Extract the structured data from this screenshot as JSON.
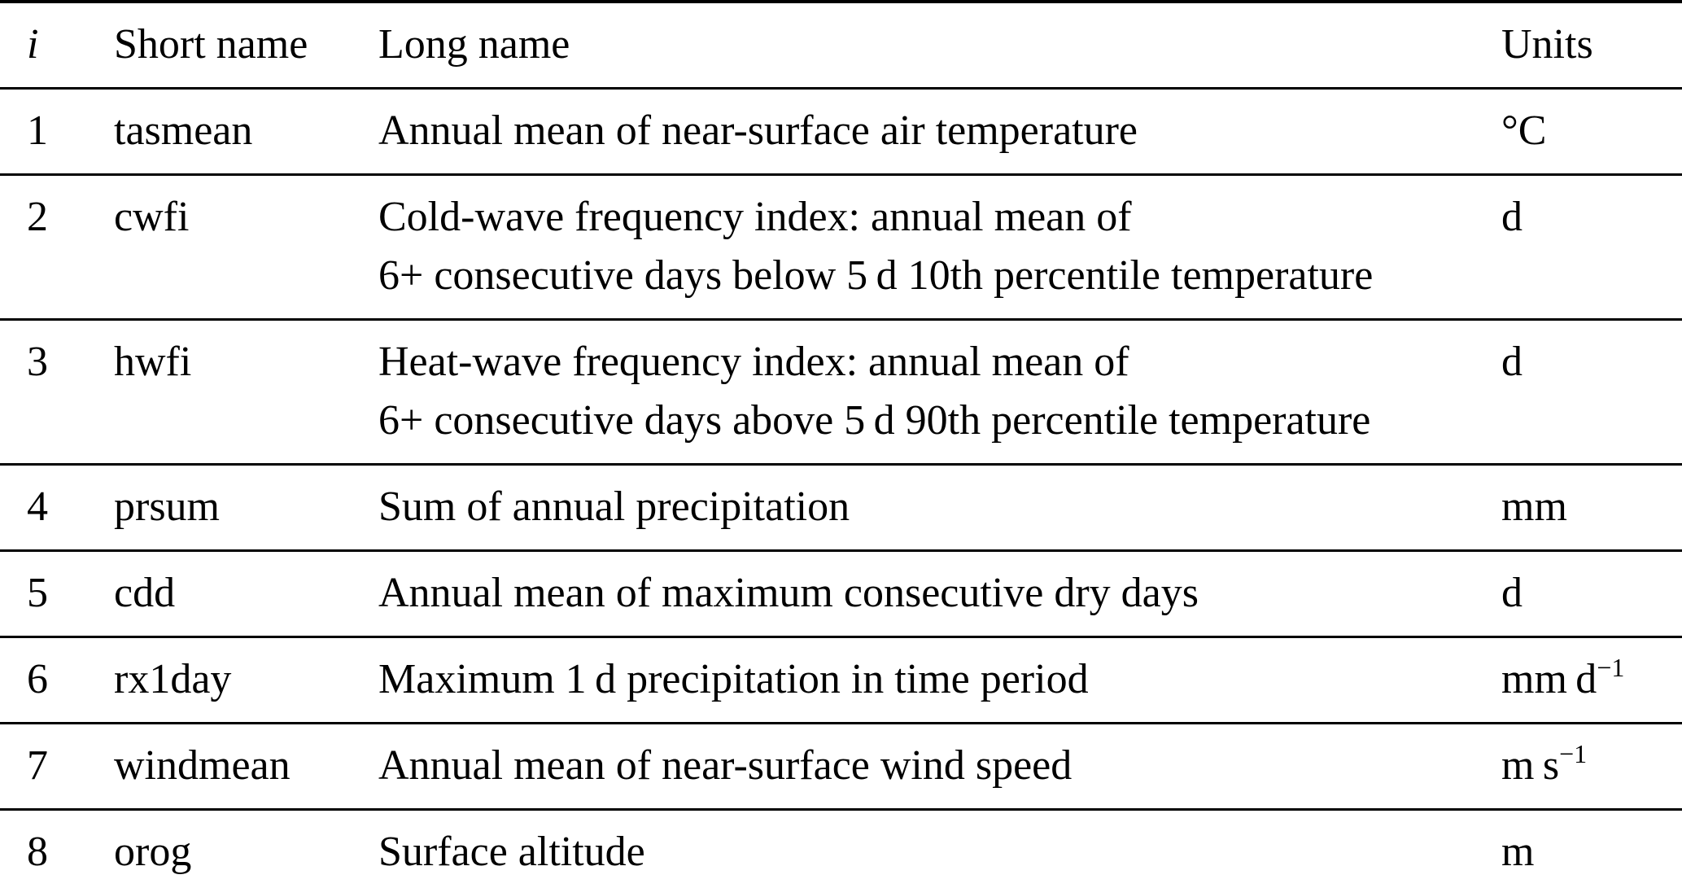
{
  "colors": {
    "text": "#000000",
    "background": "#ffffff",
    "rule": "#000000"
  },
  "table": {
    "headers": {
      "index": "i",
      "short_name": "Short name",
      "long_name": "Long name",
      "units": "Units"
    },
    "rows": [
      {
        "i": "1",
        "short": "tasmean",
        "long_lines": [
          "Annual mean of near-surface air temperature"
        ],
        "unit_base": "°C",
        "unit_sup": ""
      },
      {
        "i": "2",
        "short": "cwfi",
        "long_lines": [
          "Cold-wave frequency index: annual mean of",
          "6+ consecutive days below 5 d 10th percentile temperature"
        ],
        "unit_base": "d",
        "unit_sup": ""
      },
      {
        "i": "3",
        "short": "hwfi",
        "long_lines": [
          "Heat-wave frequency index: annual mean of",
          "6+ consecutive days above 5 d 90th percentile temperature"
        ],
        "unit_base": "d",
        "unit_sup": ""
      },
      {
        "i": "4",
        "short": "prsum",
        "long_lines": [
          "Sum of annual precipitation"
        ],
        "unit_base": "mm",
        "unit_sup": ""
      },
      {
        "i": "5",
        "short": "cdd",
        "long_lines": [
          "Annual mean of maximum consecutive dry days"
        ],
        "unit_base": "d",
        "unit_sup": ""
      },
      {
        "i": "6",
        "short": "rx1day",
        "long_lines": [
          "Maximum 1 d precipitation in time period"
        ],
        "unit_base": "mm d",
        "unit_sup": "−1"
      },
      {
        "i": "7",
        "short": "windmean",
        "long_lines": [
          "Annual mean of near-surface wind speed"
        ],
        "unit_base": "m s",
        "unit_sup": "−1"
      },
      {
        "i": "8",
        "short": "orog",
        "long_lines": [
          "Surface altitude"
        ],
        "unit_base": "m",
        "unit_sup": ""
      }
    ]
  }
}
